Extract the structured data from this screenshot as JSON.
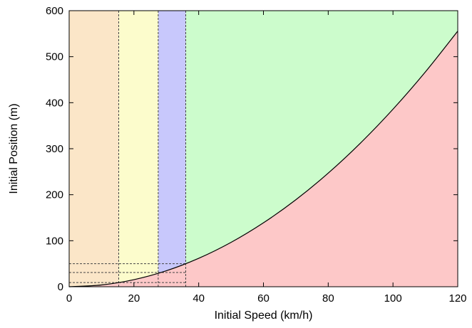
{
  "chart_data": {
    "type": "area",
    "xlabel": "Initial Speed (km/h)",
    "ylabel": "Initial Position (m)",
    "xlim": [
      0,
      120
    ],
    "ylim": [
      0,
      600
    ],
    "x_ticks": [
      0,
      20,
      40,
      60,
      80,
      100,
      120
    ],
    "y_ticks": [
      0,
      100,
      200,
      300,
      400,
      500,
      600
    ],
    "x_tick_labels": [
      "0",
      "20",
      "40",
      "60",
      "80",
      "100",
      "120"
    ],
    "y_tick_labels": [
      "0",
      "100",
      "200",
      "300",
      "400",
      "500",
      "600"
    ],
    "grid": false,
    "curve": {
      "x": [
        0,
        10,
        20,
        30,
        40,
        50,
        60,
        70,
        80,
        90,
        100,
        110,
        120
      ],
      "y": [
        0,
        3.9,
        15.4,
        34.7,
        61.7,
        96.4,
        138.9,
        189.0,
        246.9,
        312.5,
        385.8,
        466.8,
        555.6
      ]
    },
    "bands": [
      {
        "x_start": 0,
        "x_end": 15.3,
        "color": "#fbe6c8"
      },
      {
        "x_start": 15.3,
        "x_end": 27.5,
        "color": "#fcfccc"
      },
      {
        "x_start": 27.5,
        "x_end": 36,
        "color": "#c8c8fc"
      },
      {
        "x_start": 36,
        "x_end": 120,
        "color": "#ccfccc"
      }
    ],
    "below_curve_color": "#fdc8c8",
    "dashed_vertical_x": [
      15.3,
      27.5,
      36
    ],
    "dashed_horizontal_y": [
      9,
      31,
      50
    ]
  }
}
